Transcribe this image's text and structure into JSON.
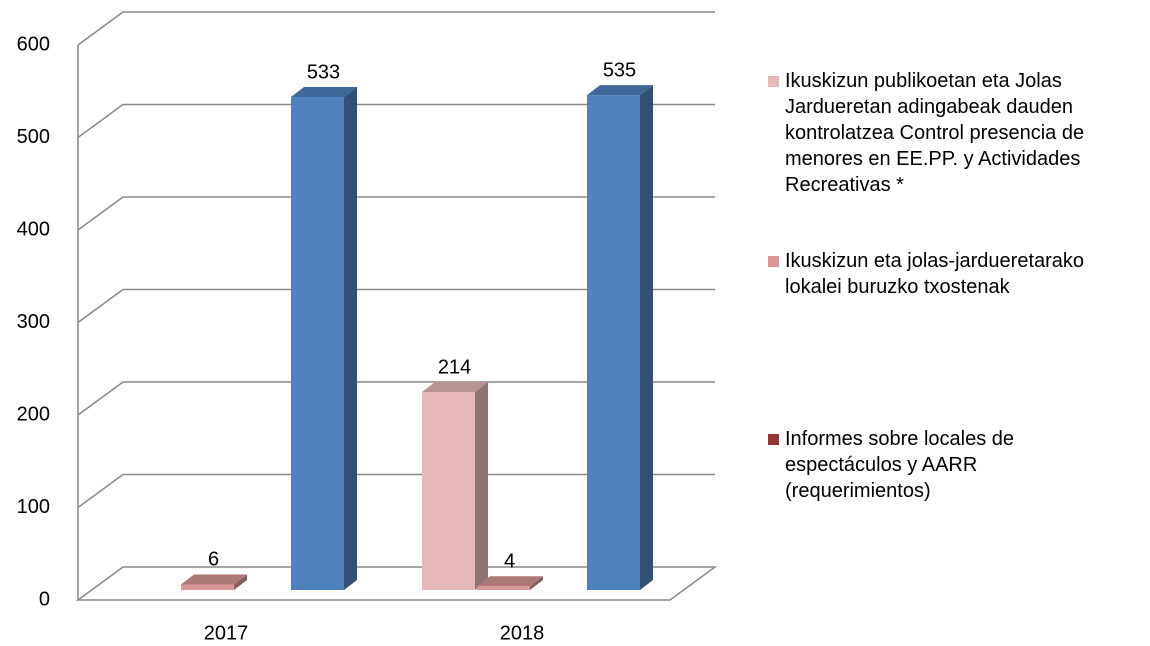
{
  "chart_data": {
    "type": "bar3d",
    "categories": [
      "2017",
      "2018"
    ],
    "series": [
      {
        "name": "Ikuskizun publikoetan eta Jolas Jardueretan adingabeak dauden kontrolatzea Control presencia de menores en EE.PP. y Actividades Recreativas *",
        "color": "#e6b9b8",
        "values": [
          null,
          214
        ]
      },
      {
        "name": "Ikuskizun eta jolas-jardueretarako lokalei buruzko txostenak",
        "color": "#d99694",
        "values": [
          6,
          4
        ]
      },
      {
        "name": "Informes sobre locales de espectáculos y AARR (requerimientos)",
        "color": "#953735",
        "values": [
          null,
          null
        ]
      },
      {
        "color": "#4f81bd",
        "values": [
          533,
          535
        ]
      }
    ],
    "ylim": [
      0,
      600
    ],
    "yticks": [
      0,
      100,
      200,
      300,
      400,
      500,
      600
    ],
    "grid": true,
    "legend": "right"
  }
}
